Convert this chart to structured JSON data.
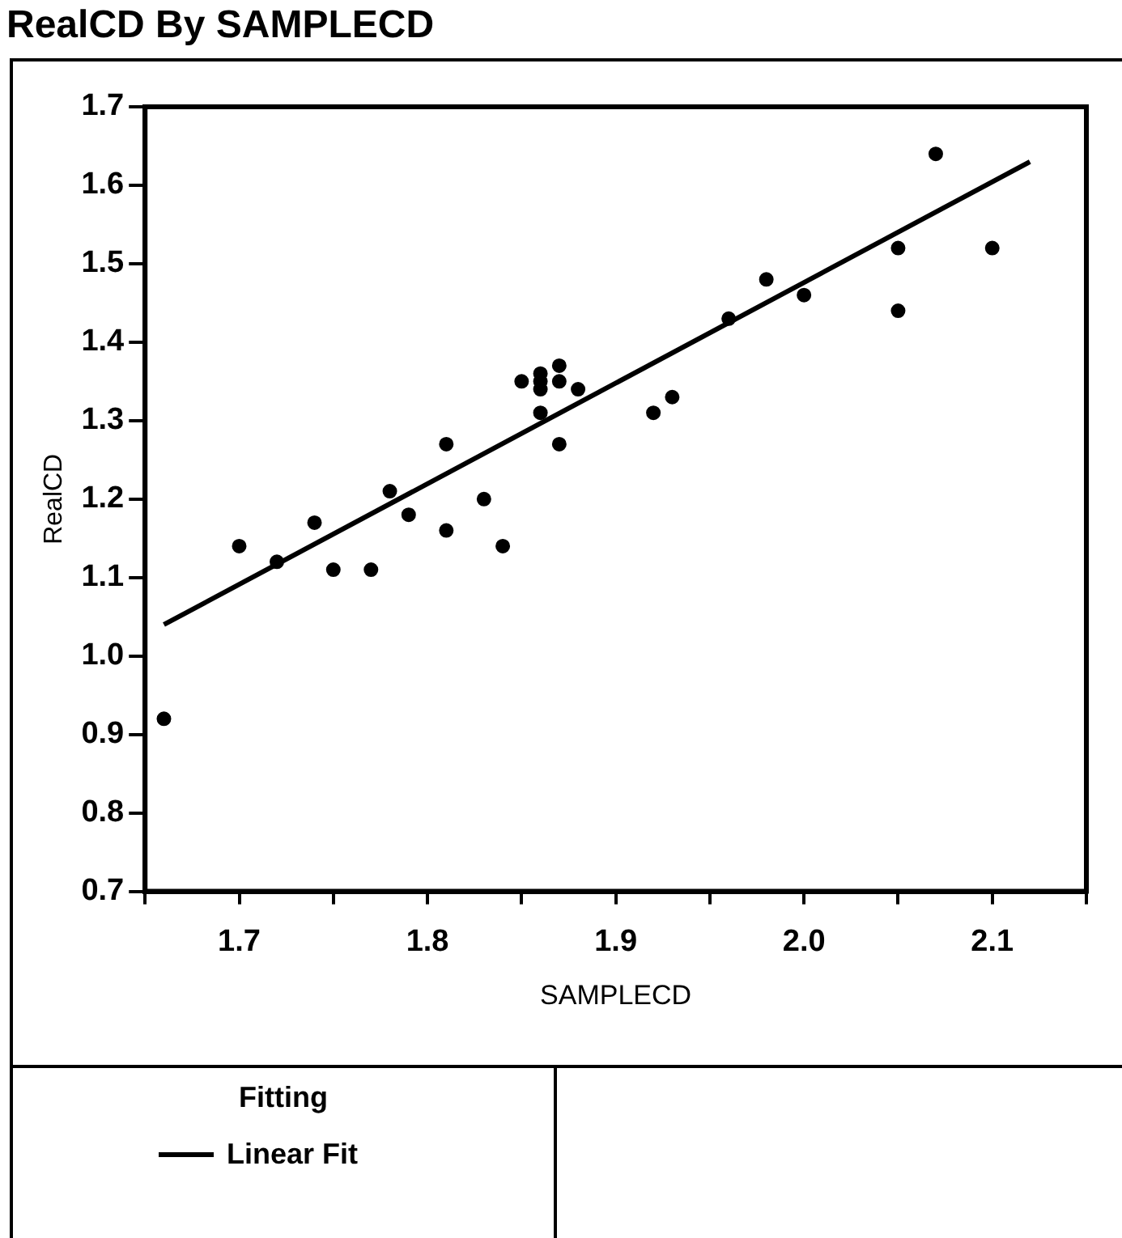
{
  "chart_data": {
    "type": "scatter",
    "title": "RealCD By SAMPLECD",
    "xlabel": "SAMPLECD",
    "ylabel": "RealCD",
    "legend_title": "Fitting",
    "legend": "bottom",
    "grid": false,
    "marker": "circle",
    "xlim": [
      1.65,
      2.15
    ],
    "ylim": [
      0.7,
      1.7
    ],
    "xticks": [
      {
        "value": 1.65,
        "label": null
      },
      1.7,
      {
        "value": 1.75,
        "label": null
      },
      1.8,
      {
        "value": 1.85,
        "label": null
      },
      1.9,
      {
        "value": 1.95,
        "label": null
      },
      {
        "value": 2.0,
        "label": "2.0"
      },
      {
        "value": 2.05,
        "label": null
      },
      2.1,
      {
        "value": 2.15,
        "label": null
      }
    ],
    "yticks": [
      0.7,
      0.8,
      0.9,
      {
        "value": 1.0,
        "label": "1.0"
      },
      1.1,
      1.2,
      1.3,
      1.4,
      1.5,
      1.6,
      1.7
    ],
    "series": [
      {
        "color": "#000000",
        "x": [
          1.66,
          1.7,
          1.72,
          1.74,
          1.75,
          1.77,
          1.78,
          1.79,
          1.81,
          1.81,
          1.83,
          1.84,
          1.85,
          1.86,
          1.86,
          1.86,
          1.86,
          1.87,
          1.87,
          1.87,
          1.88,
          1.92,
          1.93,
          1.96,
          1.98,
          2.0,
          2.05,
          2.05,
          2.07,
          2.1
        ],
        "values": [
          0.92,
          1.14,
          1.12,
          1.17,
          1.11,
          1.11,
          1.21,
          1.18,
          1.27,
          1.16,
          1.2,
          1.14,
          1.35,
          1.36,
          1.35,
          1.34,
          1.31,
          1.37,
          1.35,
          1.27,
          1.34,
          1.31,
          1.33,
          1.43,
          1.48,
          1.46,
          1.52,
          1.44,
          1.64,
          1.52
        ]
      },
      {
        "type": "line",
        "name": "Linear Fit",
        "color": "#000000",
        "marker": "none",
        "line_style": "solid",
        "x": [
          1.66,
          2.12
        ],
        "values": [
          1.04,
          1.63
        ]
      }
    ]
  }
}
